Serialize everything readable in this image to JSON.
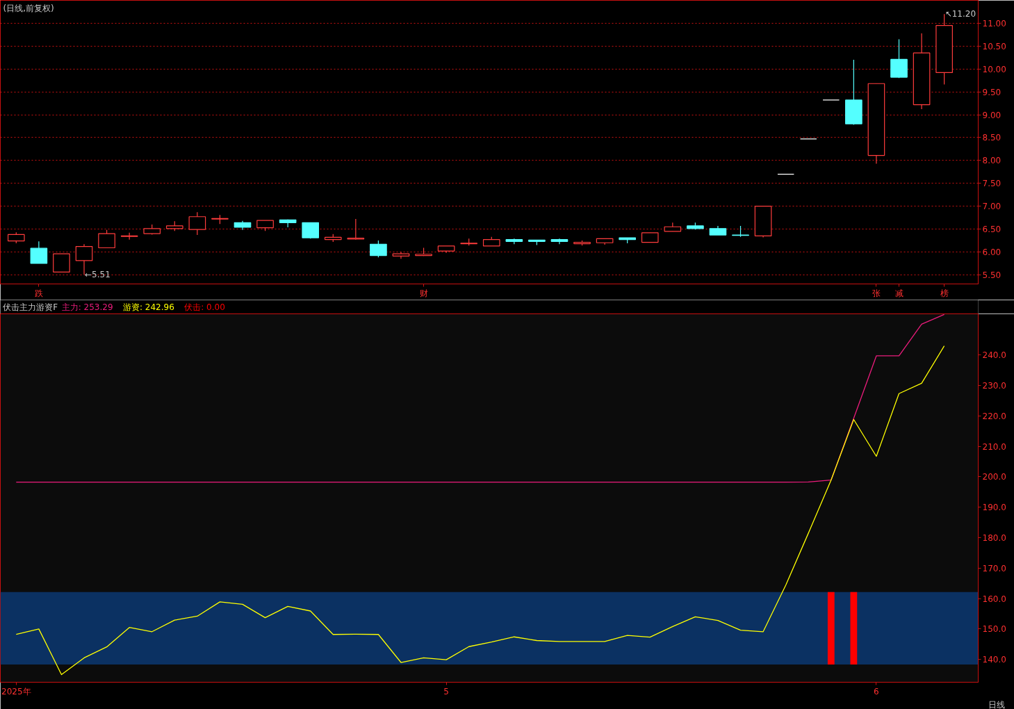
{
  "chart_data": [
    {
      "type": "candlestick",
      "title": "(日线,前复权)",
      "categories": [
        null,
        "跌",
        null,
        null,
        null,
        null,
        null,
        null,
        null,
        null,
        null,
        null,
        null,
        null,
        null,
        null,
        null,
        null,
        "财",
        null,
        null,
        null,
        null,
        null,
        null,
        null,
        null,
        null,
        null,
        null,
        null,
        null,
        null,
        null,
        null,
        null,
        null,
        null,
        "张",
        "减",
        null,
        "榜"
      ],
      "ohlc": [
        [
          6.24,
          6.43,
          6.19,
          6.38
        ],
        [
          6.08,
          6.23,
          5.75,
          5.75
        ],
        [
          5.56,
          5.96,
          5.56,
          5.96
        ],
        [
          5.81,
          6.17,
          5.51,
          6.12
        ],
        [
          6.09,
          6.48,
          6.09,
          6.4
        ],
        [
          6.34,
          6.42,
          6.27,
          6.35
        ],
        [
          6.4,
          6.6,
          6.38,
          6.51
        ],
        [
          6.51,
          6.67,
          6.46,
          6.57
        ],
        [
          6.49,
          6.87,
          6.37,
          6.77
        ],
        [
          6.72,
          6.81,
          6.61,
          6.73
        ],
        [
          6.64,
          6.68,
          6.48,
          6.54
        ],
        [
          6.53,
          6.69,
          6.46,
          6.69
        ],
        [
          6.7,
          6.71,
          6.54,
          6.64
        ],
        [
          6.64,
          6.64,
          6.29,
          6.31
        ],
        [
          6.27,
          6.39,
          6.22,
          6.32
        ],
        [
          6.28,
          6.72,
          6.27,
          6.3
        ],
        [
          6.17,
          6.25,
          5.88,
          5.92
        ],
        [
          5.91,
          6.0,
          5.85,
          5.96
        ],
        [
          5.92,
          6.09,
          5.91,
          5.95
        ],
        [
          6.02,
          6.13,
          5.98,
          6.13
        ],
        [
          6.18,
          6.29,
          6.14,
          6.19
        ],
        [
          6.13,
          6.33,
          6.13,
          6.27
        ],
        [
          6.27,
          6.29,
          6.17,
          6.23
        ],
        [
          6.26,
          6.26,
          6.15,
          6.23
        ],
        [
          6.27,
          6.29,
          6.17,
          6.23
        ],
        [
          6.18,
          6.25,
          6.14,
          6.21
        ],
        [
          6.2,
          6.29,
          6.16,
          6.29
        ],
        [
          6.31,
          6.31,
          6.19,
          6.27
        ],
        [
          6.21,
          6.42,
          6.21,
          6.42
        ],
        [
          6.45,
          6.64,
          6.45,
          6.55
        ],
        [
          6.57,
          6.64,
          6.49,
          6.51
        ],
        [
          6.51,
          6.57,
          6.37,
          6.37
        ],
        [
          6.37,
          6.57,
          6.33,
          6.36
        ],
        [
          6.35,
          7.0,
          6.32,
          7.0
        ],
        [
          7.7,
          7.7,
          7.7,
          7.7
        ],
        [
          8.47,
          8.47,
          8.47,
          8.47
        ],
        [
          9.32,
          9.32,
          9.32,
          9.32
        ],
        [
          9.32,
          10.2,
          8.78,
          8.8
        ],
        [
          8.11,
          9.68,
          7.93,
          9.68
        ],
        [
          10.21,
          10.65,
          9.8,
          9.82
        ],
        [
          9.22,
          10.78,
          9.12,
          10.35
        ],
        [
          9.92,
          11.2,
          9.66,
          10.95
        ]
      ],
      "colors": [
        "#ff3c3c",
        "#54ffff",
        "#ff3c3c",
        "#ff3c3c",
        "#ff3c3c",
        "#ff3c3c",
        "#ff3c3c",
        "#ff3c3c",
        "#ff3c3c",
        "#ff3c3c",
        "#54ffff",
        "#ff3c3c",
        "#54ffff",
        "#54ffff",
        "#ff3c3c",
        "#ff3c3c",
        "#54ffff",
        "#ff3c3c",
        "#ff3c3c",
        "#ff3c3c",
        "#ff3c3c",
        "#ff3c3c",
        "#54ffff",
        "#54ffff",
        "#54ffff",
        "#ff3c3c",
        "#ff3c3c",
        "#54ffff",
        "#ff3c3c",
        "#ff3c3c",
        "#54ffff",
        "#54ffff",
        "#54ffff",
        "#ff3c3c",
        "#ffffff",
        "#ffffff",
        "#ffffff",
        "#54ffff",
        "#ff3c3c",
        "#54ffff",
        "#ff3c3c",
        "#ff3c3c"
      ],
      "value_labels": [
        null,
        null,
        null,
        "←5.51",
        null,
        null,
        null,
        null,
        null,
        null,
        null,
        null,
        null,
        null,
        null,
        null,
        null,
        null,
        null,
        null,
        null,
        null,
        null,
        null,
        null,
        null,
        null,
        null,
        null,
        null,
        null,
        null,
        null,
        null,
        null,
        null,
        null,
        null,
        null,
        null,
        null,
        "↖11.20"
      ],
      "ylim": [
        5.3,
        11.5
      ],
      "yticks": [
        {
          "value": 5.5,
          "label": "5.50"
        },
        {
          "value": 6,
          "label": "6.00"
        },
        {
          "value": 6.5,
          "label": "6.50"
        },
        {
          "value": 7,
          "label": "7.00"
        },
        {
          "value": 7.5,
          "label": "7.50"
        },
        {
          "value": 8,
          "label": "8.00"
        },
        {
          "value": 8.5,
          "label": "8.50"
        },
        {
          "value": 9,
          "label": "9.00"
        },
        {
          "value": 9.5,
          "label": "9.50"
        },
        {
          "value": 10,
          "label": "10.00"
        },
        {
          "value": 10.5,
          "label": "10.50"
        },
        {
          "value": 11,
          "label": "11.00"
        }
      ],
      "grid": "y"
    },
    {
      "type": "line",
      "title": "伏击主力游资F",
      "categories": [
        "2025年",
        null,
        null,
        null,
        null,
        null,
        null,
        null,
        null,
        null,
        null,
        null,
        null,
        null,
        null,
        null,
        null,
        null,
        null,
        "5",
        null,
        null,
        null,
        null,
        null,
        null,
        null,
        null,
        null,
        null,
        null,
        null,
        null,
        null,
        null,
        null,
        null,
        null,
        "6",
        null,
        null,
        null
      ],
      "ylim": [
        132.5,
        253.5
      ],
      "yticks": [
        {
          "value": 140,
          "label": "140.0"
        },
        {
          "value": 150,
          "label": "150.0"
        },
        {
          "value": 160,
          "label": "160.0"
        },
        {
          "value": 170,
          "label": "170.0"
        },
        {
          "value": 180,
          "label": "180.0"
        },
        {
          "value": 190,
          "label": "190.0"
        },
        {
          "value": 200,
          "label": "200.0"
        },
        {
          "value": 210,
          "label": "210.0"
        },
        {
          "value": 220,
          "label": "220.0"
        },
        {
          "value": 230,
          "label": "230.0"
        },
        {
          "value": 240,
          "label": "240.0"
        }
      ],
      "bands": [
        {
          "axis": "y",
          "from": 138.3,
          "to": 162.1,
          "color": "#0b3162"
        }
      ],
      "series": [
        {
          "name": "主力: 253.29",
          "color": "#ec1c7c",
          "type": "line",
          "values": [
            198.2,
            198.2,
            198.2,
            198.2,
            198.2,
            198.2,
            198.2,
            198.2,
            198.2,
            198.2,
            198.2,
            198.2,
            198.2,
            198.2,
            198.2,
            198.2,
            198.2,
            198.2,
            198.2,
            198.2,
            198.2,
            198.2,
            198.2,
            198.2,
            198.2,
            198.2,
            198.2,
            198.2,
            198.2,
            198.2,
            198.2,
            198.2,
            198.2,
            198.2,
            198.2,
            198.3,
            198.9,
            219.2,
            239.7,
            239.7,
            250.1,
            253.29
          ]
        },
        {
          "name": "游资: 242.96",
          "color": "#ffff00",
          "type": "line",
          "values": [
            148.2,
            150.0,
            135.0,
            140.5,
            144.1,
            150.5,
            149.1,
            152.9,
            154.2,
            158.9,
            158.1,
            153.7,
            157.4,
            155.9,
            148.2,
            148.3,
            148.2,
            139.0,
            140.5,
            139.9,
            144.2,
            145.7,
            147.4,
            146.2,
            145.9,
            145.9,
            145.9,
            147.9,
            147.3,
            150.8,
            154.0,
            152.8,
            149.6,
            149.1,
            164.4,
            181.5,
            198.9,
            218.8,
            206.7,
            227.3,
            230.7,
            242.96
          ]
        },
        {
          "name": "伏击: 0.00",
          "color": "#ff0000",
          "type": "bar",
          "values": [
            null,
            null,
            null,
            null,
            null,
            null,
            null,
            null,
            null,
            null,
            null,
            null,
            null,
            null,
            null,
            null,
            null,
            null,
            null,
            null,
            null,
            null,
            null,
            null,
            null,
            null,
            null,
            null,
            null,
            null,
            null,
            null,
            null,
            null,
            null,
            null,
            23.8,
            23.8,
            null,
            null,
            null,
            null
          ],
          "base": [
            null,
            null,
            null,
            null,
            null,
            null,
            null,
            null,
            null,
            null,
            null,
            null,
            null,
            null,
            null,
            null,
            null,
            null,
            null,
            null,
            null,
            null,
            null,
            null,
            null,
            null,
            null,
            null,
            null,
            null,
            null,
            null,
            null,
            null,
            null,
            null,
            138.3,
            138.3,
            null,
            null,
            null,
            null
          ]
        }
      ],
      "legend": "top left",
      "annotations": [
        "日线"
      ]
    }
  ]
}
